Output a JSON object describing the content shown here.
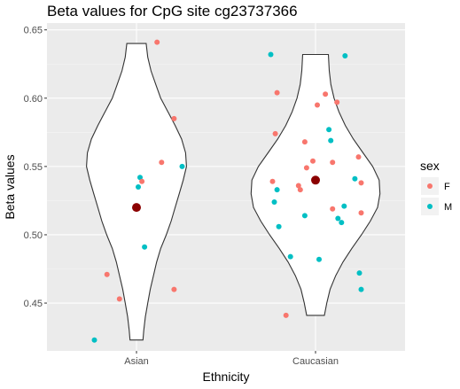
{
  "chart_data": {
    "type": "violin",
    "title": "Beta values for CpG site cg23737366",
    "xlabel": "Ethnicity",
    "ylabel": "Beta values",
    "categories": [
      "Asian",
      "Caucasian"
    ],
    "ylim": [
      0.415,
      0.655
    ],
    "yticks": [
      "0.45",
      "0.50",
      "0.55",
      "0.60",
      "0.65"
    ],
    "ytick_values": [
      0.45,
      0.5,
      0.55,
      0.6,
      0.65
    ],
    "grid": true,
    "means": [
      0.52,
      0.54
    ],
    "mean_color": "#8B0000",
    "legend": {
      "title": "sex",
      "placement": "right",
      "entries": [
        {
          "label": "F",
          "color": "#F8766D"
        },
        {
          "label": "M",
          "color": "#00BFC4"
        }
      ]
    },
    "violins": [
      {
        "category": "Asian",
        "profile": [
          [
            0.423,
            0.08
          ],
          [
            0.43,
            0.09
          ],
          [
            0.44,
            0.11
          ],
          [
            0.45,
            0.14
          ],
          [
            0.46,
            0.17
          ],
          [
            0.47,
            0.21
          ],
          [
            0.48,
            0.25
          ],
          [
            0.49,
            0.3
          ],
          [
            0.5,
            0.37
          ],
          [
            0.51,
            0.43
          ],
          [
            0.52,
            0.48
          ],
          [
            0.53,
            0.53
          ],
          [
            0.54,
            0.58
          ],
          [
            0.55,
            0.62
          ],
          [
            0.56,
            0.61
          ],
          [
            0.57,
            0.56
          ],
          [
            0.58,
            0.48
          ],
          [
            0.59,
            0.39
          ],
          [
            0.6,
            0.3
          ],
          [
            0.61,
            0.24
          ],
          [
            0.62,
            0.18
          ],
          [
            0.63,
            0.14
          ],
          [
            0.64,
            0.12
          ]
        ]
      },
      {
        "category": "Caucasian",
        "profile": [
          [
            0.441,
            0.11
          ],
          [
            0.45,
            0.14
          ],
          [
            0.46,
            0.18
          ],
          [
            0.47,
            0.25
          ],
          [
            0.48,
            0.34
          ],
          [
            0.49,
            0.45
          ],
          [
            0.5,
            0.57
          ],
          [
            0.51,
            0.68
          ],
          [
            0.52,
            0.77
          ],
          [
            0.53,
            0.8
          ],
          [
            0.54,
            0.79
          ],
          [
            0.55,
            0.71
          ],
          [
            0.56,
            0.59
          ],
          [
            0.57,
            0.47
          ],
          [
            0.58,
            0.37
          ],
          [
            0.59,
            0.29
          ],
          [
            0.6,
            0.23
          ],
          [
            0.61,
            0.19
          ],
          [
            0.62,
            0.17
          ],
          [
            0.632,
            0.16
          ]
        ]
      }
    ],
    "points": [
      {
        "category": "Asian",
        "jitter": 0.23,
        "y": 0.641,
        "sex": "F"
      },
      {
        "category": "Asian",
        "jitter": 0.42,
        "y": 0.585,
        "sex": "F"
      },
      {
        "category": "Asian",
        "jitter": 0.28,
        "y": 0.553,
        "sex": "F"
      },
      {
        "category": "Asian",
        "jitter": 0.51,
        "y": 0.55,
        "sex": "M"
      },
      {
        "category": "Asian",
        "jitter": 0.04,
        "y": 0.542,
        "sex": "M"
      },
      {
        "category": "Asian",
        "jitter": 0.06,
        "y": 0.539,
        "sex": "F"
      },
      {
        "category": "Asian",
        "jitter": 0.02,
        "y": 0.535,
        "sex": "M"
      },
      {
        "category": "Asian",
        "jitter": 0.09,
        "y": 0.491,
        "sex": "M"
      },
      {
        "category": "Asian",
        "jitter": -0.33,
        "y": 0.471,
        "sex": "F"
      },
      {
        "category": "Asian",
        "jitter": 0.42,
        "y": 0.46,
        "sex": "F"
      },
      {
        "category": "Asian",
        "jitter": -0.19,
        "y": 0.453,
        "sex": "F"
      },
      {
        "category": "Asian",
        "jitter": -0.47,
        "y": 0.423,
        "sex": "M"
      },
      {
        "category": "Caucasian",
        "jitter": -0.5,
        "y": 0.632,
        "sex": "M"
      },
      {
        "category": "Caucasian",
        "jitter": 0.33,
        "y": 0.631,
        "sex": "M"
      },
      {
        "category": "Caucasian",
        "jitter": -0.43,
        "y": 0.604,
        "sex": "F"
      },
      {
        "category": "Caucasian",
        "jitter": 0.11,
        "y": 0.603,
        "sex": "F"
      },
      {
        "category": "Caucasian",
        "jitter": 0.24,
        "y": 0.597,
        "sex": "F"
      },
      {
        "category": "Caucasian",
        "jitter": 0.02,
        "y": 0.595,
        "sex": "F"
      },
      {
        "category": "Caucasian",
        "jitter": 0.15,
        "y": 0.577,
        "sex": "M"
      },
      {
        "category": "Caucasian",
        "jitter": -0.45,
        "y": 0.574,
        "sex": "F"
      },
      {
        "category": "Caucasian",
        "jitter": 0.17,
        "y": 0.569,
        "sex": "M"
      },
      {
        "category": "Caucasian",
        "jitter": -0.12,
        "y": 0.568,
        "sex": "F"
      },
      {
        "category": "Caucasian",
        "jitter": 0.48,
        "y": 0.557,
        "sex": "F"
      },
      {
        "category": "Caucasian",
        "jitter": -0.03,
        "y": 0.554,
        "sex": "F"
      },
      {
        "category": "Caucasian",
        "jitter": 0.19,
        "y": 0.553,
        "sex": "F"
      },
      {
        "category": "Caucasian",
        "jitter": -0.1,
        "y": 0.549,
        "sex": "F"
      },
      {
        "category": "Caucasian",
        "jitter": 0.44,
        "y": 0.541,
        "sex": "M"
      },
      {
        "category": "Caucasian",
        "jitter": -0.48,
        "y": 0.539,
        "sex": "F"
      },
      {
        "category": "Caucasian",
        "jitter": 0.51,
        "y": 0.538,
        "sex": "F"
      },
      {
        "category": "Caucasian",
        "jitter": -0.19,
        "y": 0.536,
        "sex": "F"
      },
      {
        "category": "Caucasian",
        "jitter": -0.17,
        "y": 0.533,
        "sex": "F"
      },
      {
        "category": "Caucasian",
        "jitter": -0.43,
        "y": 0.533,
        "sex": "M"
      },
      {
        "category": "Caucasian",
        "jitter": -0.46,
        "y": 0.524,
        "sex": "M"
      },
      {
        "category": "Caucasian",
        "jitter": 0.32,
        "y": 0.521,
        "sex": "M"
      },
      {
        "category": "Caucasian",
        "jitter": 0.19,
        "y": 0.519,
        "sex": "F"
      },
      {
        "category": "Caucasian",
        "jitter": 0.51,
        "y": 0.516,
        "sex": "F"
      },
      {
        "category": "Caucasian",
        "jitter": -0.12,
        "y": 0.514,
        "sex": "M"
      },
      {
        "category": "Caucasian",
        "jitter": 0.25,
        "y": 0.512,
        "sex": "M"
      },
      {
        "category": "Caucasian",
        "jitter": 0.29,
        "y": 0.509,
        "sex": "M"
      },
      {
        "category": "Caucasian",
        "jitter": -0.41,
        "y": 0.506,
        "sex": "M"
      },
      {
        "category": "Caucasian",
        "jitter": -0.28,
        "y": 0.484,
        "sex": "M"
      },
      {
        "category": "Caucasian",
        "jitter": 0.04,
        "y": 0.482,
        "sex": "M"
      },
      {
        "category": "Caucasian",
        "jitter": 0.49,
        "y": 0.472,
        "sex": "M"
      },
      {
        "category": "Caucasian",
        "jitter": 0.51,
        "y": 0.46,
        "sex": "M"
      },
      {
        "category": "Caucasian",
        "jitter": -0.33,
        "y": 0.441,
        "sex": "F"
      }
    ]
  }
}
